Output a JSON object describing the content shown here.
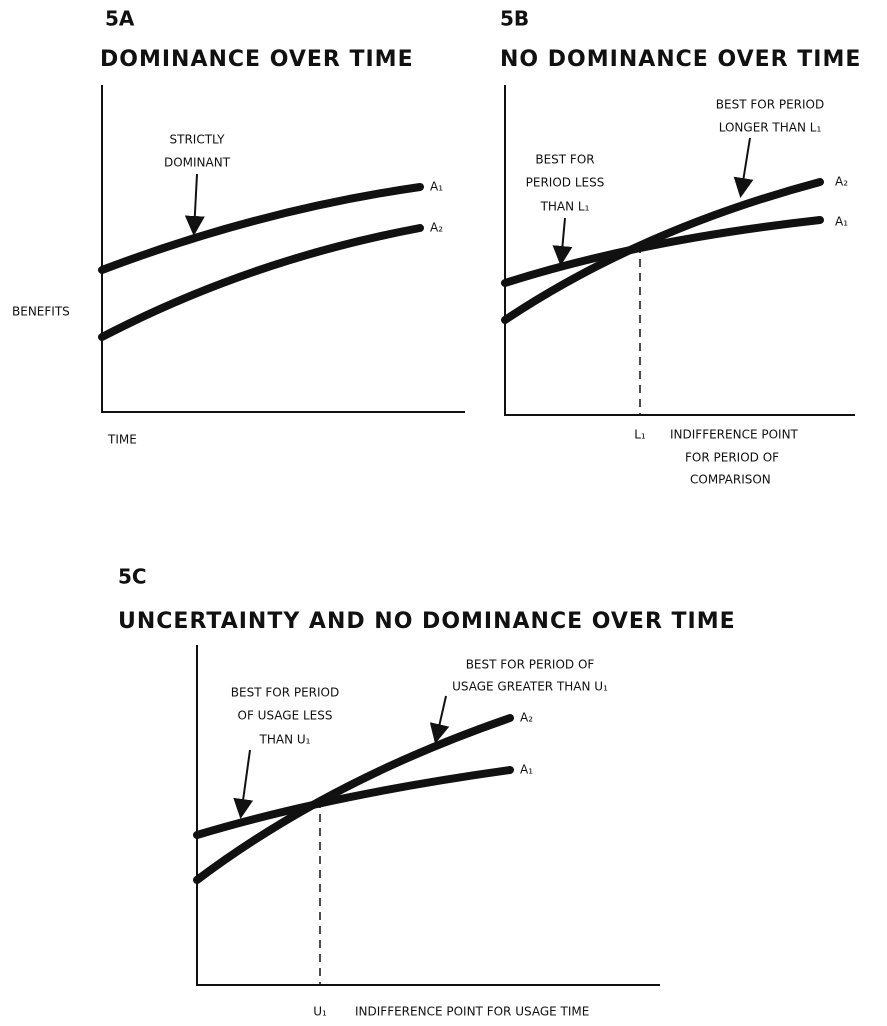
{
  "panels": [
    {
      "id": "5A",
      "title": "DOMINANCE OVER TIME",
      "y_label": "BENEFITS",
      "x_label": "TIME",
      "curve_labels": [
        "A₁",
        "A₂"
      ],
      "annotations": [
        {
          "lines": [
            "STRICTLY",
            "DOMINANT"
          ]
        }
      ]
    },
    {
      "id": "5B",
      "title": "NO DOMINANCE OVER TIME",
      "curve_labels": [
        "A₂",
        "A₁"
      ],
      "annotations": [
        {
          "lines": [
            "BEST FOR PERIOD",
            "LONGER THAN L₁"
          ]
        },
        {
          "lines": [
            "BEST FOR",
            "PERIOD LESS",
            "THAN L₁"
          ]
        }
      ],
      "point_label": "L₁",
      "x_label_lines": [
        "INDIFFERENCE POINT",
        "FOR PERIOD OF",
        "COMPARISON"
      ]
    },
    {
      "id": "5C",
      "title": "UNCERTAINTY AND NO DOMINANCE OVER TIME",
      "curve_labels": [
        "A₂",
        "A₁"
      ],
      "annotations": [
        {
          "lines": [
            "BEST FOR PERIOD OF",
            "USAGE GREATER THAN U₁"
          ]
        },
        {
          "lines": [
            "BEST FOR PERIOD",
            "OF USAGE LESS",
            "THAN U₁"
          ]
        }
      ],
      "point_label": "U₁",
      "x_label_lines": [
        "INDIFFERENCE POINT FOR USAGE TIME"
      ]
    }
  ]
}
